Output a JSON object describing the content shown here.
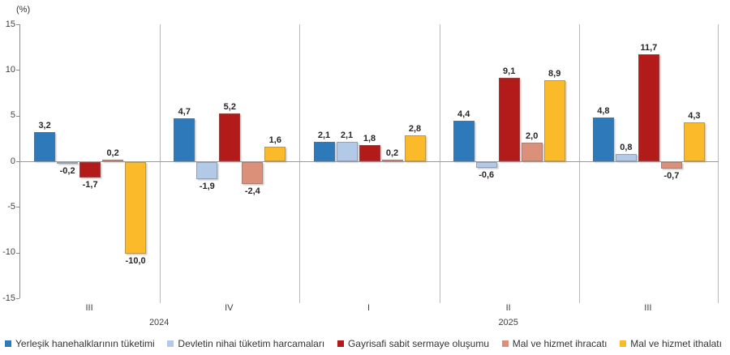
{
  "chart_data": {
    "type": "bar",
    "title": "",
    "ylabel": "(%)",
    "xlabel": "",
    "ylim": [
      -15,
      15
    ],
    "yticks": [
      15,
      10,
      5,
      0,
      -5,
      -10,
      -15
    ],
    "grid": "zero-line-only",
    "legend_position": "bottom",
    "categories": [
      "III",
      "IV",
      "I",
      "II",
      "III"
    ],
    "year_groups": [
      {
        "label": "2024",
        "quarters": 2
      },
      {
        "label": "2025",
        "quarters": 3
      }
    ],
    "value_label_style": "comma-decimal",
    "series": [
      {
        "name": "Yerleşik hanehalklarının tüketimi",
        "color": "#2E79B9",
        "values": [
          3.2,
          4.7,
          2.1,
          4.4,
          4.8
        ]
      },
      {
        "name": "Devletin nihai tüketim harcamaları",
        "color": "#B3C9E8",
        "values": [
          -0.2,
          -1.9,
          2.1,
          -0.6,
          0.8
        ]
      },
      {
        "name": "Gayrisafi sabit sermaye oluşumu",
        "color": "#B31A1A",
        "values": [
          -1.7,
          5.2,
          1.8,
          9.1,
          11.7
        ]
      },
      {
        "name": "Mal ve hizmet ihracatı",
        "color": "#DB9179",
        "values": [
          0.2,
          -2.4,
          0.2,
          2.0,
          -0.7
        ]
      },
      {
        "name": "Mal ve hizmet ithalatı",
        "color": "#FBBA2A",
        "values": [
          -10.0,
          1.6,
          2.8,
          8.9,
          4.3
        ]
      }
    ]
  }
}
